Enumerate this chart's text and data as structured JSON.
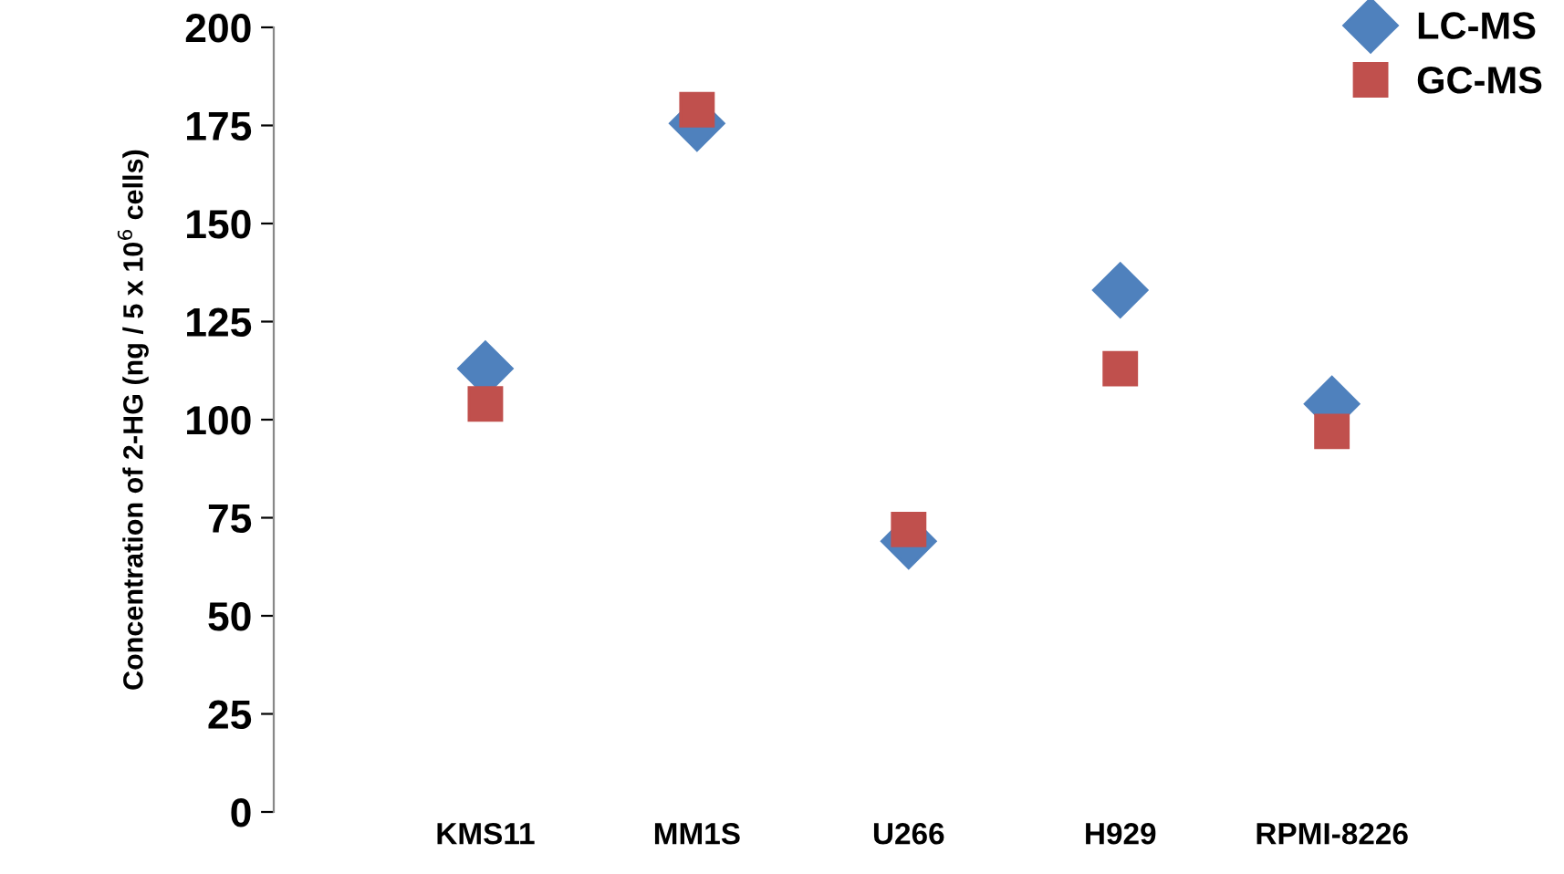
{
  "chart_data": {
    "type": "scatter",
    "ylabel": "Concentration of 2-HG (ng / 5 x 10$^{6}$ cells)",
    "categories": [
      "KMS11",
      "MM1S",
      "U266",
      "H929",
      "RPMI-8226"
    ],
    "series": [
      {
        "name": "LC-MS",
        "color": "#4f81bd",
        "marker": "diamond",
        "values": [
          113,
          175.5,
          69,
          133,
          104
        ]
      },
      {
        "name": "GC-MS",
        "color": "#c0504d",
        "marker": "square",
        "values": [
          104,
          179,
          72,
          113,
          97
        ]
      }
    ],
    "ylim": [
      0,
      200
    ],
    "yticks": [
      0,
      25,
      50,
      75,
      100,
      125,
      150,
      175,
      200
    ],
    "grid": false,
    "legend": "top right"
  }
}
